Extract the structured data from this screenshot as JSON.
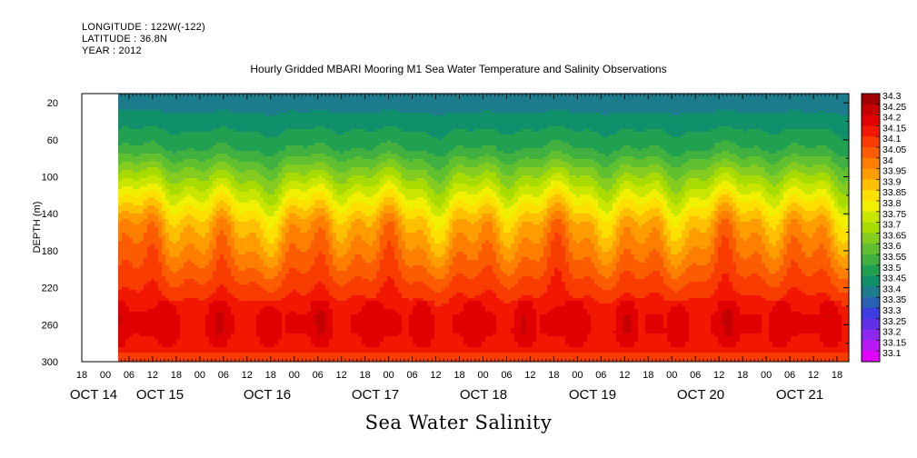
{
  "header": {
    "longitude": "LONGITUDE : 122W(-122)",
    "latitude": "LATITUDE : 36.8N",
    "year": "YEAR : 2012",
    "title": "Hourly Gridded MBARI Mooring M1 Sea Water Temperature and Salinity Observations"
  },
  "bottom_title": "Sea Water Salinity",
  "chart_data": {
    "type": "heatmap",
    "title": "Hourly Gridded MBARI Mooring M1 Sea Water Temperature and Salinity Observations",
    "variable": "Sea Water Salinity",
    "ylabel": "DEPTH (m)",
    "ylim": [
      300,
      10
    ],
    "y_ticks": [
      20,
      60,
      100,
      140,
      180,
      220,
      260,
      300
    ],
    "x_hour_ticks": [
      "18",
      "00",
      "06",
      "12",
      "18",
      "00",
      "06",
      "12",
      "18",
      "00",
      "06",
      "12",
      "18",
      "00",
      "06",
      "12",
      "18",
      "00",
      "06",
      "12",
      "18",
      "00",
      "06",
      "12",
      "18",
      "00",
      "06",
      "12",
      "18",
      "00",
      "06",
      "12",
      "18"
    ],
    "x_date_labels": [
      "OCT 14",
      "OCT 15",
      "OCT 16",
      "OCT 17",
      "OCT 18",
      "OCT 19",
      "OCT 20",
      "OCT 21"
    ],
    "x_range_hours": [
      "OCT 14 18",
      "OCT 21 21"
    ],
    "data_start": "OCT 14 04",
    "colorbar_levels": [
      "34.3",
      "34.25",
      "34.2",
      "34.15",
      "34.1",
      "34.05",
      "34",
      "33.95",
      "33.9",
      "33.85",
      "33.8",
      "33.75",
      "33.7",
      "33.65",
      "33.6",
      "33.55",
      "33.5",
      "33.45",
      "33.4",
      "33.35",
      "33.3",
      "33.25",
      "33.2",
      "33.15",
      "33.1"
    ],
    "colorbar_colors": [
      "#a00000",
      "#c40000",
      "#e00000",
      "#f21800",
      "#f83c00",
      "#fc5c00",
      "#fe7e00",
      "#fe9c00",
      "#fec000",
      "#fee000",
      "#f0f000",
      "#c8e600",
      "#a8dc00",
      "#84cc20",
      "#60c030",
      "#40b040",
      "#20a050",
      "#10906a",
      "#1c7c8c",
      "#2860b4",
      "#3c3ce0",
      "#6030e8",
      "#8c28f0",
      "#b818f4",
      "#e000fc"
    ],
    "salinity_profile": [
      {
        "depth": 10,
        "salinity": 33.4
      },
      {
        "depth": 30,
        "salinity": 33.45
      },
      {
        "depth": 50,
        "salinity": 33.5
      },
      {
        "depth": 70,
        "salinity": 33.55
      },
      {
        "depth": 90,
        "salinity": 33.65
      },
      {
        "depth": 110,
        "salinity": 33.75
      },
      {
        "depth": 130,
        "salinity": 33.85
      },
      {
        "depth": 150,
        "salinity": 33.95
      },
      {
        "depth": 170,
        "salinity": 34.0
      },
      {
        "depth": 190,
        "salinity": 34.05
      },
      {
        "depth": 210,
        "salinity": 34.1
      },
      {
        "depth": 230,
        "salinity": 34.15
      },
      {
        "depth": 250,
        "salinity": 34.2
      },
      {
        "depth": 270,
        "salinity": 34.2
      },
      {
        "depth": 290,
        "salinity": 34.15
      },
      {
        "depth": 300,
        "salinity": 34.1
      }
    ]
  }
}
